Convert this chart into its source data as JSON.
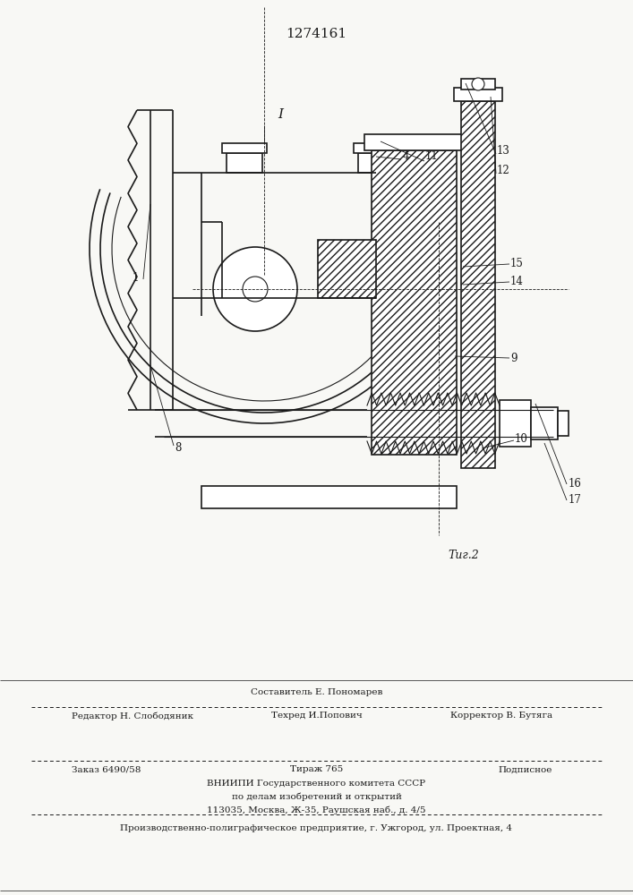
{
  "patent_number": "1274161",
  "fig_label": "Τиг.2",
  "bg_color": "#f8f8f5",
  "lc": "#1a1a1a",
  "footer": {
    "sestavitel": "Составитель Е. Пономарев",
    "redaktor": "Редактор Н. Слободяник",
    "tehred": "Техред И.Попович",
    "korrektor": "Корректор В. Бутяга",
    "zakaz": "Заказ 6490/58",
    "tirazh": "Тираж 765",
    "podpisnoe": "Подписное",
    "vnipi": "ВНИИПИ Государственного комитета СССР",
    "podelamizob": "по делам изобретений и открытий",
    "address": "113035, Москва, Ж-35, Раушская наб., д. 4/5",
    "proizv": "Производственно-полиграфическое предприятие, г. Ужгород, ул. Проектная, 4"
  }
}
